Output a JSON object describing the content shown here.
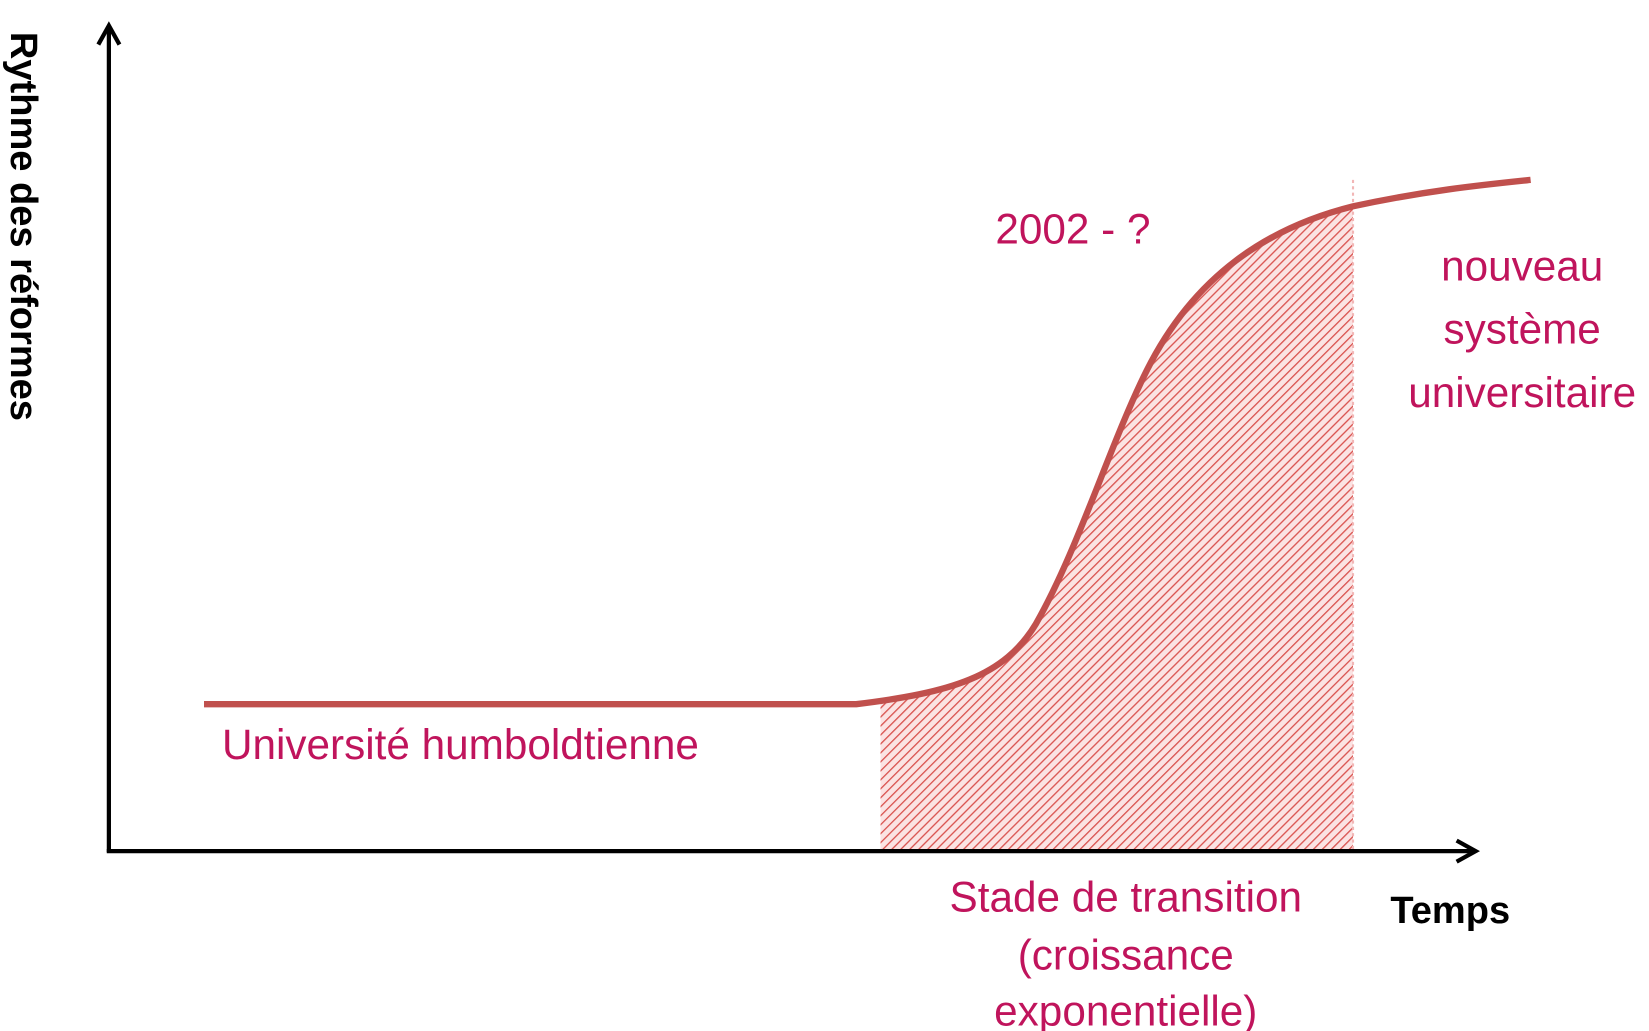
{
  "axes": {
    "y_label": "Rythme des réformes",
    "x_label": "Temps"
  },
  "labels": {
    "start": "Université humboldtienne",
    "period": "2002 - ?",
    "end_lines": [
      "nouveau",
      "système",
      "universitaire"
    ],
    "transition_lines": [
      "Stade de transition",
      "(croissance",
      "exponentielle)"
    ]
  }
}
